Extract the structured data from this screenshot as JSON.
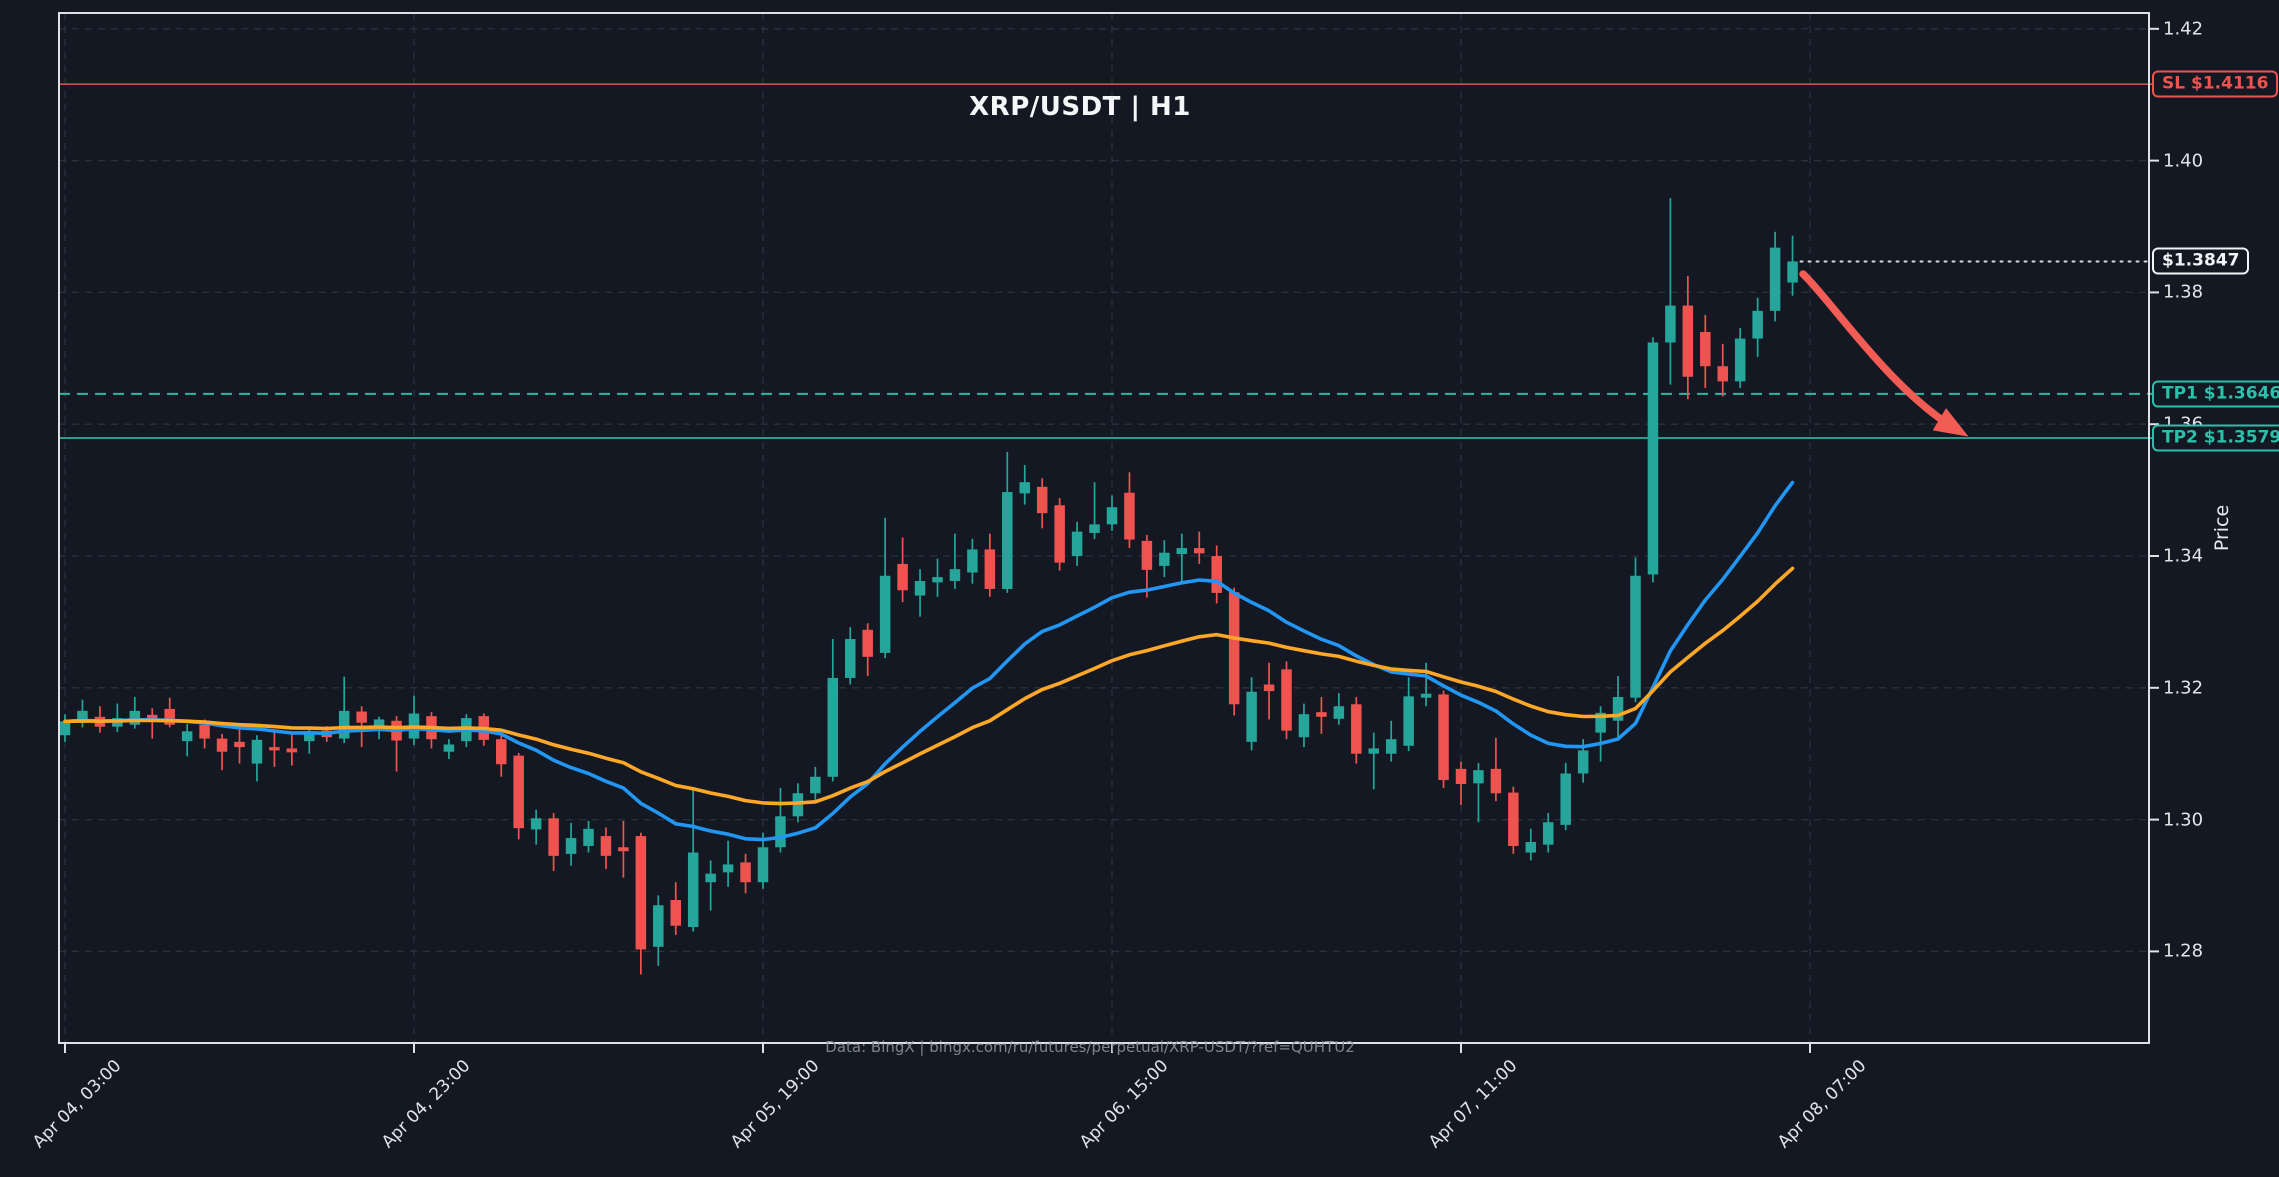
{
  "header": {
    "title": "XRP/USDT | H1"
  },
  "footer": {
    "watermark": "Data: BingX | bingx.com/ru/futures/perpetual/XRP-USDT/?ref=QUHTU2"
  },
  "axes": {
    "y_label": "Price",
    "y_ticks": [
      1.28,
      1.3,
      1.32,
      1.34,
      1.36,
      1.38,
      1.4,
      1.42
    ],
    "x_ticks": [
      {
        "index": 0,
        "label": "Apr 04, 03:00"
      },
      {
        "index": 20,
        "label": "Apr 04, 23:00"
      },
      {
        "index": 40,
        "label": "Apr 05, 19:00"
      },
      {
        "index": 60,
        "label": "Apr 06, 15:00"
      },
      {
        "index": 80,
        "label": "Apr 07, 11:00"
      },
      {
        "index": 100,
        "label": "Apr 08, 07:00"
      }
    ]
  },
  "levels": {
    "sl": {
      "label": "SL $1.4116",
      "value": 1.4116,
      "color": "#ef5350",
      "line_color": "#cf4f4c",
      "style": "solid"
    },
    "tp1": {
      "label": "TP1 $1.3646",
      "value": 1.3646,
      "color": "#2cc0aa",
      "line_color": "#2ab8a3",
      "style": "dashed"
    },
    "tp2": {
      "label": "TP2 $1.3579",
      "value": 1.3579,
      "color": "#2cc0aa",
      "line_color": "#2a9d8f",
      "style": "solid"
    },
    "current": {
      "label": "$1.3847",
      "value": 1.3847,
      "color": "#f0f3f7",
      "line_color": "#d6dae2",
      "style": "dotted"
    }
  },
  "annotation_arrow": {
    "color": "#f25c54",
    "from_index": 99.6,
    "from_price": 1.3828,
    "c1_index": 101.2,
    "c1_price": 1.3788,
    "c2_index": 104.6,
    "c2_price": 1.3652,
    "to_index": 108.4,
    "to_price": 1.3592
  },
  "chart_data": {
    "type": "candlestick",
    "symbol": "XRP/USDT",
    "timeframe": "H1",
    "title": "XRP/USDT | H1",
    "ylabel": "Price",
    "start_time": "Apr 04, 03:00",
    "interval_hours": 1,
    "y_range": [
      1.2661,
      1.4224
    ],
    "x_range_indices": [
      -0.35,
      119.5
    ],
    "grid": true,
    "colors": {
      "up": "#26a69a",
      "down": "#ef5350",
      "background": "#141823",
      "grid": "#2b303d",
      "spine": "#dfe1e5",
      "tick_text": "#e2e4e9"
    },
    "indicators": [
      {
        "name": "EMA fast",
        "period": 20,
        "color": "#2196f3"
      },
      {
        "name": "EMA slow",
        "period": 40,
        "color": "#ffa726"
      }
    ],
    "ohlc": [
      [
        1.3128,
        1.316,
        1.3118,
        1.3149
      ],
      [
        1.3147,
        1.3182,
        1.314,
        1.3165
      ],
      [
        1.3156,
        1.3172,
        1.3132,
        1.3141
      ],
      [
        1.3141,
        1.3176,
        1.3133,
        1.3154
      ],
      [
        1.3144,
        1.3186,
        1.3138,
        1.3165
      ],
      [
        1.3159,
        1.3169,
        1.3123,
        1.3151
      ],
      [
        1.3168,
        1.3185,
        1.314,
        1.3144
      ],
      [
        1.3119,
        1.3145,
        1.3096,
        1.3134
      ],
      [
        1.3144,
        1.3152,
        1.3108,
        1.3123
      ],
      [
        1.3123,
        1.313,
        1.3075,
        1.3103
      ],
      [
        1.3118,
        1.3142,
        1.3085,
        1.311
      ],
      [
        1.3085,
        1.3128,
        1.3058,
        1.3121
      ],
      [
        1.311,
        1.3135,
        1.308,
        1.3105
      ],
      [
        1.3108,
        1.313,
        1.3082,
        1.3102
      ],
      [
        1.3119,
        1.314,
        1.31,
        1.3134
      ],
      [
        1.3135,
        1.3142,
        1.3118,
        1.3125
      ],
      [
        1.3123,
        1.3217,
        1.3116,
        1.3165
      ],
      [
        1.3164,
        1.3172,
        1.311,
        1.3147
      ],
      [
        1.3135,
        1.3156,
        1.3122,
        1.3152
      ],
      [
        1.315,
        1.3157,
        1.3073,
        1.312
      ],
      [
        1.3123,
        1.3188,
        1.3113,
        1.3161
      ],
      [
        1.3157,
        1.3163,
        1.3108,
        1.3122
      ],
      [
        1.3103,
        1.3122,
        1.3092,
        1.3114
      ],
      [
        1.3119,
        1.316,
        1.311,
        1.3154
      ],
      [
        1.3157,
        1.3161,
        1.3112,
        1.3121
      ],
      [
        1.3122,
        1.3128,
        1.3065,
        1.3084
      ],
      [
        1.3097,
        1.3101,
        1.297,
        1.2987
      ],
      [
        1.2985,
        1.3015,
        1.2962,
        1.3002
      ],
      [
        1.3002,
        1.301,
        1.2922,
        1.2945
      ],
      [
        1.2948,
        1.2995,
        1.293,
        1.2972
      ],
      [
        1.296,
        1.2998,
        1.295,
        1.2986
      ],
      [
        1.2975,
        1.2988,
        1.2925,
        1.2945
      ],
      [
        1.2958,
        1.2998,
        1.2912,
        1.2952
      ],
      [
        1.2975,
        1.298,
        1.2765,
        1.2803
      ],
      [
        1.2807,
        1.2885,
        1.2778,
        1.287
      ],
      [
        1.2878,
        1.2905,
        1.2825,
        1.2839
      ],
      [
        1.2837,
        1.3045,
        1.283,
        1.295
      ],
      [
        1.2905,
        1.2938,
        1.2862,
        1.2918
      ],
      [
        1.292,
        1.2968,
        1.2898,
        1.2932
      ],
      [
        1.2935,
        1.2948,
        1.2888,
        1.2905
      ],
      [
        1.2905,
        1.298,
        1.2895,
        1.2958
      ],
      [
        1.2958,
        1.3048,
        1.295,
        1.3005
      ],
      [
        1.3005,
        1.3055,
        1.2996,
        1.304
      ],
      [
        1.304,
        1.308,
        1.303,
        1.3065
      ],
      [
        1.3065,
        1.3274,
        1.3058,
        1.3215
      ],
      [
        1.3215,
        1.3292,
        1.3205,
        1.3274
      ],
      [
        1.3288,
        1.3298,
        1.3218,
        1.3247
      ],
      [
        1.3253,
        1.3458,
        1.3245,
        1.337
      ],
      [
        1.3388,
        1.3428,
        1.333,
        1.3348
      ],
      [
        1.334,
        1.338,
        1.3308,
        1.3362
      ],
      [
        1.336,
        1.3396,
        1.3338,
        1.3368
      ],
      [
        1.3362,
        1.3434,
        1.335,
        1.338
      ],
      [
        1.3375,
        1.3426,
        1.3358,
        1.341
      ],
      [
        1.341,
        1.3434,
        1.3338,
        1.335
      ],
      [
        1.335,
        1.3558,
        1.3344,
        1.3497
      ],
      [
        1.3495,
        1.3538,
        1.3478,
        1.3512
      ],
      [
        1.3505,
        1.3518,
        1.3442,
        1.3465
      ],
      [
        1.3477,
        1.3488,
        1.3378,
        1.339
      ],
      [
        1.34,
        1.3452,
        1.3385,
        1.3437
      ],
      [
        1.3435,
        1.3512,
        1.3426,
        1.3448
      ],
      [
        1.3448,
        1.3492,
        1.3438,
        1.3474
      ],
      [
        1.3496,
        1.3527,
        1.3412,
        1.3425
      ],
      [
        1.3423,
        1.3432,
        1.3337,
        1.3379
      ],
      [
        1.3385,
        1.3424,
        1.3368,
        1.3405
      ],
      [
        1.3403,
        1.3434,
        1.3358,
        1.3412
      ],
      [
        1.3412,
        1.3437,
        1.3388,
        1.3404
      ],
      [
        1.34,
        1.3416,
        1.3328,
        1.3344
      ],
      [
        1.3345,
        1.3352,
        1.3158,
        1.3175
      ],
      [
        1.3118,
        1.3216,
        1.3105,
        1.3194
      ],
      [
        1.3205,
        1.3238,
        1.3152,
        1.3195
      ],
      [
        1.3228,
        1.324,
        1.3122,
        1.3135
      ],
      [
        1.3125,
        1.3176,
        1.311,
        1.316
      ],
      [
        1.3163,
        1.3186,
        1.313,
        1.3156
      ],
      [
        1.3153,
        1.3192,
        1.3144,
        1.3172
      ],
      [
        1.3175,
        1.3186,
        1.3085,
        1.31
      ],
      [
        1.31,
        1.3132,
        1.3046,
        1.3108
      ],
      [
        1.31,
        1.315,
        1.3088,
        1.3122
      ],
      [
        1.3112,
        1.3216,
        1.3104,
        1.3187
      ],
      [
        1.3185,
        1.3238,
        1.3172,
        1.3191
      ],
      [
        1.319,
        1.3196,
        1.3048,
        1.306
      ],
      [
        1.3077,
        1.3088,
        1.3022,
        1.3054
      ],
      [
        1.3055,
        1.3086,
        1.2996,
        1.3075
      ],
      [
        1.3077,
        1.3124,
        1.3028,
        1.304
      ],
      [
        1.3041,
        1.305,
        1.2948,
        1.296
      ],
      [
        1.295,
        1.2986,
        1.2938,
        1.2966
      ],
      [
        1.2962,
        1.301,
        1.295,
        1.2996
      ],
      [
        1.2992,
        1.3086,
        1.2984,
        1.307
      ],
      [
        1.307,
        1.3122,
        1.3056,
        1.3105
      ],
      [
        1.3132,
        1.3172,
        1.3088,
        1.3162
      ],
      [
        1.315,
        1.3218,
        1.3124,
        1.3186
      ],
      [
        1.3185,
        1.3398,
        1.3178,
        1.337
      ],
      [
        1.3372,
        1.3732,
        1.336,
        1.3724
      ],
      [
        1.3724,
        1.3943,
        1.366,
        1.378
      ],
      [
        1.378,
        1.3825,
        1.3638,
        1.3672
      ],
      [
        1.374,
        1.3766,
        1.3655,
        1.3688
      ],
      [
        1.3688,
        1.3722,
        1.3642,
        1.3665
      ],
      [
        1.3665,
        1.3746,
        1.3655,
        1.373
      ],
      [
        1.373,
        1.3792,
        1.3702,
        1.3772
      ],
      [
        1.3772,
        1.3892,
        1.3756,
        1.3868
      ],
      [
        1.3815,
        1.3886,
        1.3795,
        1.3847
      ]
    ]
  }
}
